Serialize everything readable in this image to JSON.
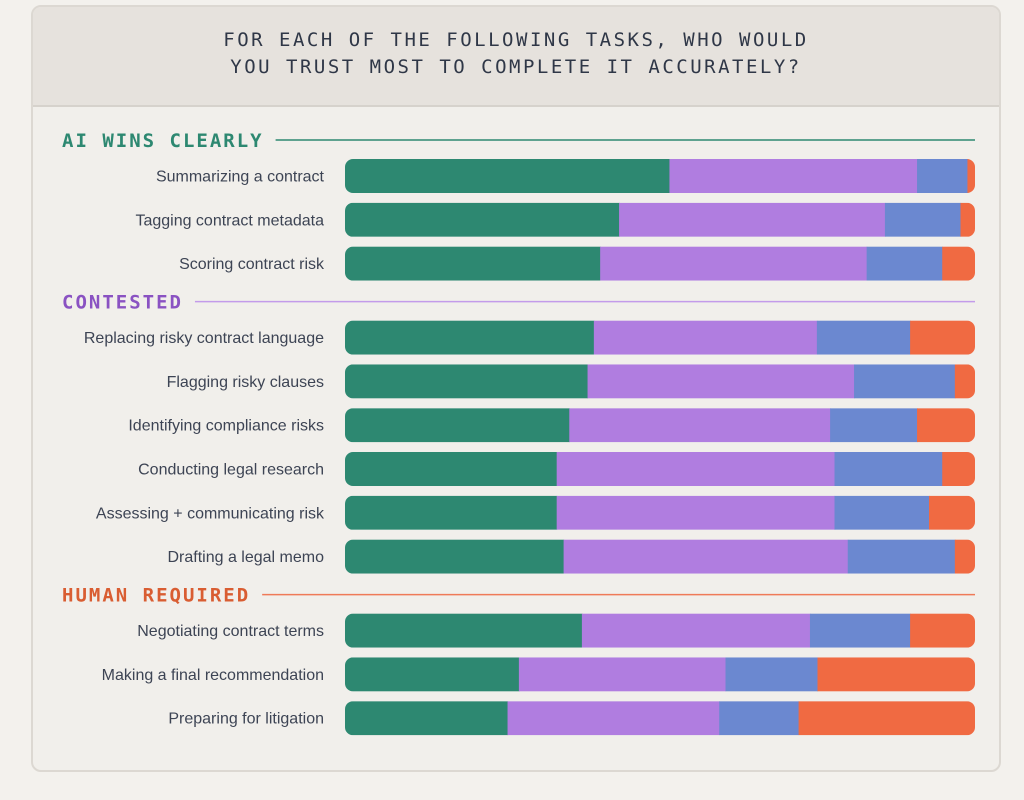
{
  "title": "FOR EACH OF THE FOLLOWING TASKS, WHO WOULD\nYOU TRUST MOST TO COMPLETE IT ACCURATELY?",
  "colors": {
    "segments": [
      "#2d8871",
      "#b07de0",
      "#6b88d0",
      "#f06a42"
    ],
    "sections": [
      "#2d8871",
      "#8a52c2",
      "#d95d32"
    ],
    "rules": [
      "#2d8871",
      "#c39bea",
      "#ef7a58"
    ]
  },
  "chart_data": {
    "type": "bar",
    "orientation": "horizontal",
    "stacked": true,
    "xlim": [
      0,
      100
    ],
    "groups": [
      {
        "title": "AI WINS CLEARLY",
        "rows": [
          {
            "label": "Summarizing a contract",
            "values": [
              51.5,
              39.3,
              8.0,
              1.2
            ]
          },
          {
            "label": "Tagging contract metadata",
            "values": [
              43.5,
              42.2,
              12.0,
              2.3
            ]
          },
          {
            "label": "Scoring contract risk",
            "values": [
              40.5,
              42.3,
              12.0,
              5.2
            ]
          }
        ]
      },
      {
        "title": "CONTESTED",
        "rows": [
          {
            "label": "Replacing risky contract language",
            "values": [
              39.5,
              35.4,
              14.8,
              10.3
            ]
          },
          {
            "label": "Flagging risky clauses",
            "values": [
              38.5,
              42.3,
              16.0,
              3.2
            ]
          },
          {
            "label": "Identifying compliance risks",
            "values": [
              35.6,
              41.4,
              13.8,
              9.2
            ]
          },
          {
            "label": "Conducting legal research",
            "values": [
              33.6,
              44.1,
              17.1,
              5.2
            ]
          },
          {
            "label": "Assessing + communicating risk",
            "values": [
              33.6,
              44.1,
              15.0,
              7.3
            ]
          },
          {
            "label": "Drafting a legal memo",
            "values": [
              34.7,
              45.1,
              17.0,
              3.2
            ]
          }
        ]
      },
      {
        "title": "HUMAN REQUIRED",
        "rows": [
          {
            "label": "Negotiating contract terms",
            "values": [
              37.6,
              36.2,
              15.9,
              10.3
            ]
          },
          {
            "label": "Making a final recommendation",
            "values": [
              27.6,
              32.8,
              14.6,
              25.0
            ]
          },
          {
            "label": "Preparing for litigation",
            "values": [
              25.8,
              33.6,
              12.6,
              28.0
            ]
          }
        ]
      }
    ]
  }
}
